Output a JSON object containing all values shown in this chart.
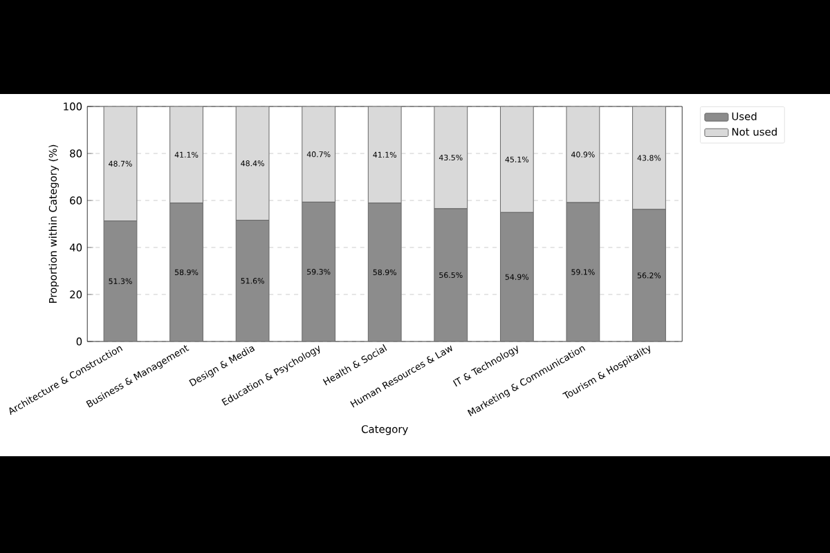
{
  "chart_data": {
    "type": "bar",
    "stacked": true,
    "xlabel": "Category",
    "ylabel": "Proportion within Category (%)",
    "categories": [
      "Architecture & Construction",
      "Business & Management",
      "Design & Media",
      "Education & Psychology",
      "Health & Social",
      "Human Resources & Law",
      "IT & Technology",
      "Marketing & Communication",
      "Tourism & Hospitality"
    ],
    "series": [
      {
        "name": "Used",
        "color": "#8c8c8c",
        "values": [
          51.3,
          58.9,
          51.6,
          59.3,
          58.9,
          56.5,
          54.9,
          59.1,
          56.2
        ],
        "value_labels": [
          "51.3%",
          "58.9%",
          "51.6%",
          "59.3%",
          "58.9%",
          "56.5%",
          "54.9%",
          "59.1%",
          "56.2%"
        ]
      },
      {
        "name": "Not used",
        "color": "#d9d9d9",
        "values": [
          48.7,
          41.1,
          48.4,
          40.7,
          41.1,
          43.5,
          45.1,
          40.9,
          43.8
        ],
        "value_labels": [
          "48.7%",
          "41.1%",
          "48.4%",
          "40.7%",
          "41.1%",
          "43.5%",
          "45.1%",
          "40.9%",
          "43.8%"
        ]
      }
    ],
    "ylim": [
      0,
      100
    ],
    "yticks": [
      0,
      20,
      40,
      60,
      80,
      100
    ],
    "grid": "y",
    "legend": "top right"
  }
}
